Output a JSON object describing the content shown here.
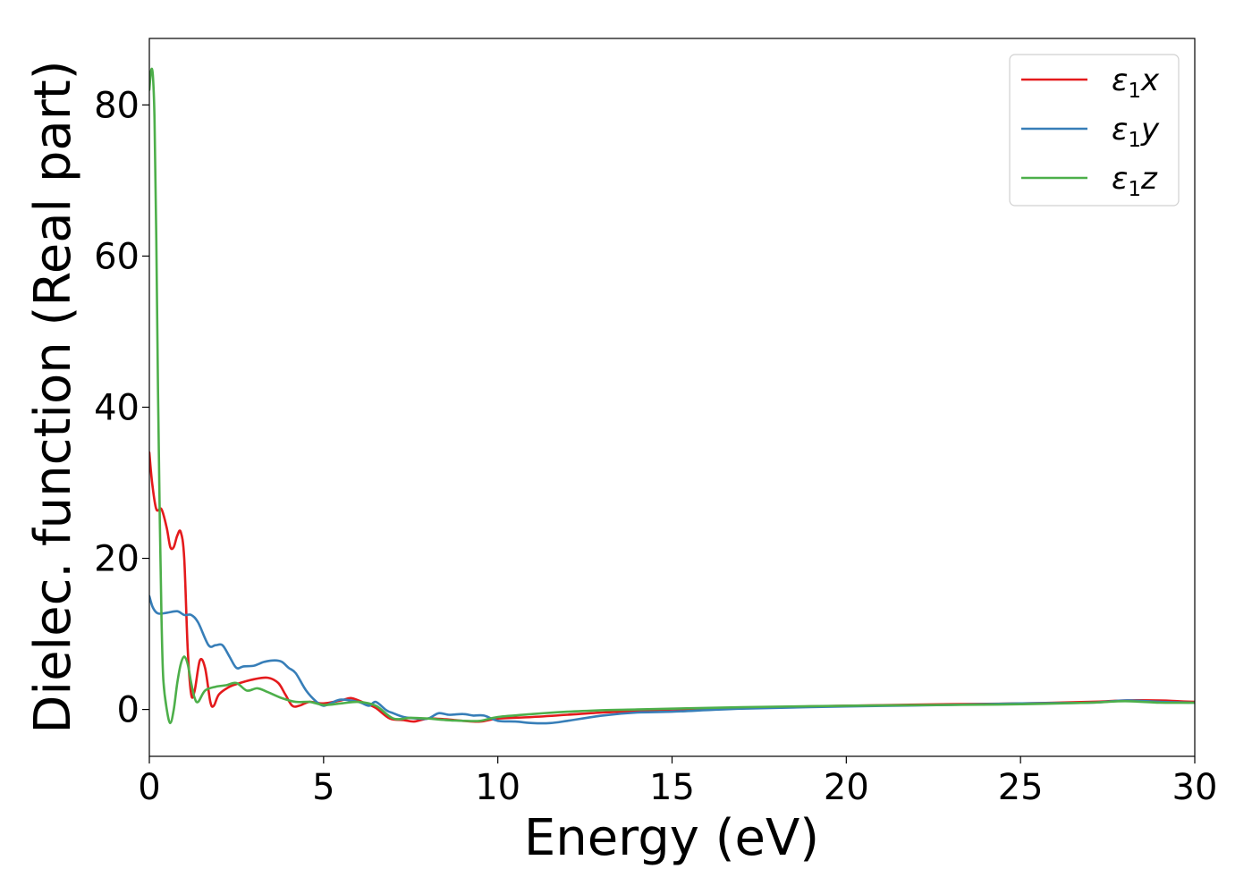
{
  "chart_data": {
    "type": "line",
    "xlabel": "Energy (eV)",
    "ylabel": "Dielec. function (Real part)",
    "xlim": [
      0,
      30
    ],
    "ylim": [
      -6.2,
      88.8
    ],
    "xticks": [
      0,
      5,
      10,
      15,
      20,
      25,
      30
    ],
    "xtick_labels": [
      "0",
      "5",
      "10",
      "15",
      "20",
      "25",
      "30"
    ],
    "yticks": [
      0,
      20,
      40,
      60,
      80
    ],
    "ytick_labels": [
      "0",
      "20",
      "40",
      "60",
      "80"
    ],
    "grid": false,
    "legend_position": "top-right",
    "series": [
      {
        "name": "ε1x",
        "legend_base": "ε",
        "legend_sub": "1",
        "legend_suffix": "x",
        "color": "#e41a1c",
        "x": [
          0,
          0.08,
          0.2,
          0.35,
          0.5,
          0.6,
          0.7,
          0.8,
          0.9,
          1.0,
          1.1,
          1.2,
          1.3,
          1.45,
          1.6,
          1.75,
          1.85,
          2.0,
          2.3,
          2.6,
          3.0,
          3.4,
          3.7,
          3.9,
          4.1,
          4.3,
          4.6,
          5.0,
          5.5,
          5.8,
          6.2,
          6.5,
          6.9,
          7.3,
          7.6,
          8.0,
          8.5,
          9.0,
          9.5,
          10.0,
          11.0,
          12.0,
          13.0,
          14.0,
          15.0,
          17.0,
          20.0,
          23.0,
          25.0,
          27.0,
          28.0,
          29.0,
          29.5,
          30.0
        ],
        "y": [
          34,
          30,
          26.5,
          26.5,
          24,
          21.5,
          21.5,
          23,
          23.5,
          20,
          8,
          2,
          2.5,
          6.5,
          5.5,
          1,
          0.5,
          2,
          3,
          3.5,
          4,
          4.2,
          3.5,
          2,
          0.5,
          0.5,
          1,
          0.8,
          1.2,
          1.5,
          0.8,
          0.2,
          -1.2,
          -1.4,
          -1.6,
          -1.2,
          -1.3,
          -1.5,
          -1.6,
          -1.2,
          -1.0,
          -0.7,
          -0.4,
          -0.2,
          0,
          0.2,
          0.5,
          0.7,
          0.8,
          1.0,
          1.2,
          1.2,
          1.1,
          1.0
        ]
      },
      {
        "name": "ε1y",
        "legend_base": "ε",
        "legend_sub": "1",
        "legend_suffix": "y",
        "color": "#377eb8",
        "x": [
          0,
          0.1,
          0.25,
          0.5,
          0.8,
          1.0,
          1.2,
          1.4,
          1.7,
          1.9,
          2.1,
          2.3,
          2.5,
          2.7,
          3.0,
          3.3,
          3.6,
          3.8,
          4.0,
          4.2,
          4.5,
          4.8,
          5.0,
          5.2,
          5.5,
          6.0,
          6.3,
          6.5,
          6.8,
          7.0,
          7.3,
          7.7,
          8.0,
          8.3,
          8.6,
          9.0,
          9.3,
          9.6,
          10.0,
          10.5,
          11.0,
          11.5,
          12.0,
          13.0,
          14.0,
          15.0,
          17.0,
          20.0,
          23.0,
          25.0,
          27.0,
          28.0,
          29.0,
          30.0
        ],
        "y": [
          15,
          13.5,
          12.7,
          12.8,
          13.0,
          12.5,
          12.5,
          11.5,
          8.5,
          8.5,
          8.5,
          7.0,
          5.5,
          5.7,
          5.8,
          6.3,
          6.5,
          6.3,
          5.5,
          4.8,
          2.5,
          1.0,
          0.5,
          0.8,
          1.3,
          1.0,
          0.5,
          1.0,
          -0.1,
          -0.5,
          -1.0,
          -1.2,
          -1.2,
          -0.5,
          -0.7,
          -0.6,
          -0.8,
          -0.8,
          -1.5,
          -1.6,
          -1.8,
          -1.8,
          -1.5,
          -0.8,
          -0.4,
          -0.3,
          0.1,
          0.4,
          0.6,
          0.8,
          0.9,
          1.2,
          1.0,
          0.9
        ]
      },
      {
        "name": "ε1z",
        "legend_base": "ε",
        "legend_sub": "1",
        "legend_suffix": "z",
        "color": "#4daf4a",
        "x": [
          0,
          0.05,
          0.1,
          0.15,
          0.2,
          0.25,
          0.3,
          0.35,
          0.4,
          0.5,
          0.6,
          0.7,
          0.8,
          0.9,
          1.0,
          1.1,
          1.2,
          1.3,
          1.4,
          1.6,
          1.9,
          2.2,
          2.5,
          2.8,
          3.1,
          3.4,
          3.8,
          4.2,
          4.6,
          5.0,
          5.5,
          6.0,
          6.5,
          7.0,
          7.5,
          8.0,
          8.5,
          9.0,
          9.5,
          10.0,
          11.0,
          12.0,
          13.0,
          14.0,
          15.0,
          17.0,
          20.0,
          23.0,
          25.0,
          27.0,
          28.0,
          29.0,
          30.0
        ],
        "y": [
          82,
          84.5,
          84,
          78,
          62,
          42,
          25,
          12,
          4,
          0,
          -1.8,
          0,
          3.5,
          6,
          7,
          6,
          3.5,
          1.5,
          1,
          2.5,
          3,
          3.2,
          3.5,
          2.5,
          2.8,
          2.3,
          1.5,
          1.0,
          1.0,
          0.6,
          0.8,
          1.0,
          0.5,
          -1.2,
          -1.1,
          -1.2,
          -1.4,
          -1.5,
          -1.5,
          -1.0,
          -0.6,
          -0.3,
          -0.1,
          0,
          0.1,
          0.3,
          0.5,
          0.6,
          0.7,
          0.9,
          1.1,
          0.9,
          0.9
        ]
      }
    ]
  }
}
